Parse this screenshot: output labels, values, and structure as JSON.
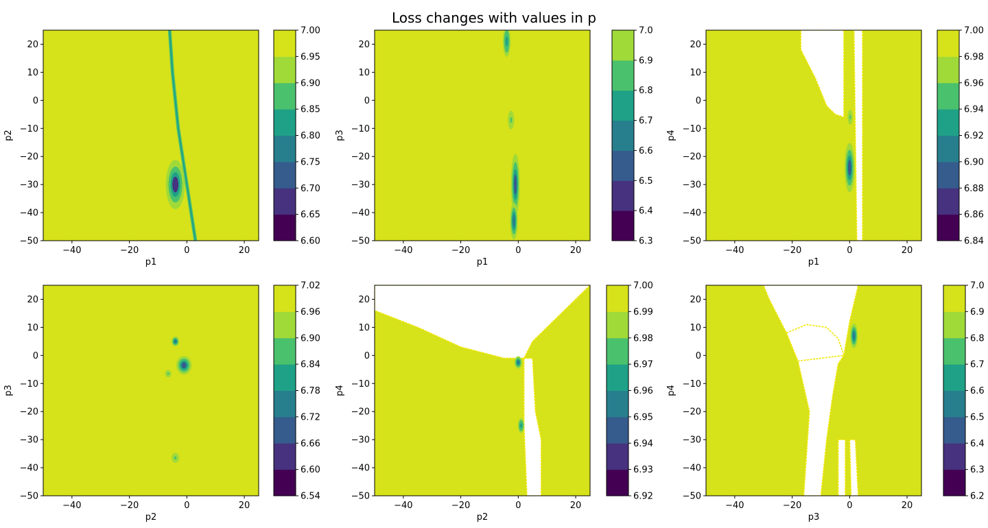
{
  "title": "Loss changes with values in p",
  "colors": {
    "viridis8": [
      "#440154",
      "#46327e",
      "#365c8d",
      "#277f8e",
      "#1fa187",
      "#4ac16d",
      "#a0da39",
      "#d6e21a"
    ],
    "plot_fill": "#d6e21a"
  },
  "chart_data": [
    {
      "type": "heatmap",
      "xlabel": "p1",
      "ylabel": "p2",
      "xlim": [
        -50,
        25
      ],
      "ylim": [
        -50,
        25
      ],
      "xticks": [
        -40,
        -20,
        0,
        20
      ],
      "yticks": [
        -50,
        -40,
        -30,
        -20,
        -10,
        0,
        10,
        20
      ],
      "colorbar": {
        "range": [
          6.6,
          7.0
        ],
        "ticks": [
          "6.60",
          "6.65",
          "6.70",
          "6.75",
          "6.80",
          "6.85",
          "6.90",
          "6.95",
          "7.00"
        ]
      },
      "features": [
        {
          "kind": "ridge",
          "points": [
            [
              -6,
              25
            ],
            [
              -5,
              10
            ],
            [
              -3,
              -10
            ],
            [
              0,
              -30
            ],
            [
              3,
              -50
            ]
          ],
          "level": 4
        },
        {
          "kind": "blob",
          "x": -4,
          "y": -30,
          "rx": 1.5,
          "ry": 4,
          "level": 1
        }
      ]
    },
    {
      "type": "heatmap",
      "xlabel": "p1",
      "ylabel": "p3",
      "xlim": [
        -50,
        25
      ],
      "ylim": [
        -50,
        25
      ],
      "xticks": [
        -40,
        -20,
        0,
        20
      ],
      "yticks": [
        -50,
        -40,
        -30,
        -20,
        -10,
        0,
        10,
        20
      ],
      "colorbar": {
        "range": [
          6.3,
          7.0
        ],
        "ticks": [
          "6.3",
          "6.4",
          "6.5",
          "6.6",
          "6.7",
          "6.8",
          "6.9",
          "7.0"
        ]
      },
      "features": [
        {
          "kind": "blob",
          "x": -4,
          "y": 21,
          "rx": 0.6,
          "ry": 2.5,
          "level": 4
        },
        {
          "kind": "blob",
          "x": -2.5,
          "y": -7,
          "rx": 0.5,
          "ry": 1.5,
          "level": 5
        },
        {
          "kind": "blob",
          "x": -1,
          "y": -30,
          "rx": 0.7,
          "ry": 5,
          "level": 2
        },
        {
          "kind": "blob",
          "x": -1.5,
          "y": -43,
          "rx": 0.6,
          "ry": 3,
          "level": 3
        }
      ]
    },
    {
      "type": "heatmap",
      "xlabel": "p1",
      "ylabel": "p4",
      "xlim": [
        -50,
        25
      ],
      "ylim": [
        -50,
        25
      ],
      "xticks": [
        -40,
        -20,
        0,
        20
      ],
      "yticks": [
        -50,
        -40,
        -30,
        -20,
        -10,
        0,
        10,
        20
      ],
      "colorbar": {
        "range": [
          6.84,
          7.0
        ],
        "ticks": [
          "6.84",
          "6.86",
          "6.88",
          "6.90",
          "6.92",
          "6.94",
          "6.96",
          "6.98",
          "7.00"
        ]
      },
      "features": [
        {
          "kind": "void",
          "points": [
            [
              -17,
              25
            ],
            [
              -2,
              25
            ],
            [
              -2,
              -6
            ],
            [
              -5,
              -5
            ],
            [
              -8,
              -2
            ],
            [
              -12,
              8
            ],
            [
              -17,
              18
            ]
          ]
        },
        {
          "kind": "void",
          "points": [
            [
              1.5,
              25
            ],
            [
              4.5,
              25
            ],
            [
              4.5,
              -50
            ],
            [
              2.5,
              -50
            ]
          ]
        },
        {
          "kind": "blob",
          "x": 0,
          "y": -24,
          "rx": 0.8,
          "ry": 4,
          "level": 2
        },
        {
          "kind": "blob",
          "x": 0.2,
          "y": -6,
          "rx": 0.4,
          "ry": 1.2,
          "level": 5
        }
      ]
    },
    {
      "type": "heatmap",
      "xlabel": "p2",
      "ylabel": "p3",
      "xlim": [
        -50,
        25
      ],
      "ylim": [
        -50,
        25
      ],
      "xticks": [
        -40,
        -20,
        0,
        20
      ],
      "yticks": [
        -50,
        -40,
        -30,
        -20,
        -10,
        0,
        10,
        20
      ],
      "colorbar": {
        "range": [
          6.54,
          7.02
        ],
        "ticks": [
          "6.54",
          "6.60",
          "6.66",
          "6.72",
          "6.78",
          "6.84",
          "6.90",
          "6.96",
          "7.02"
        ]
      },
      "features": [
        {
          "kind": "blob",
          "x": -4,
          "y": 5,
          "rx": 0.6,
          "ry": 0.8,
          "level": 3
        },
        {
          "kind": "blob",
          "x": -1,
          "y": -3.5,
          "rx": 1.2,
          "ry": 1.5,
          "level": 2
        },
        {
          "kind": "blob",
          "x": -6.5,
          "y": -6.5,
          "rx": 0.5,
          "ry": 0.6,
          "level": 5
        },
        {
          "kind": "blob",
          "x": -4,
          "y": -36.5,
          "rx": 0.6,
          "ry": 0.8,
          "level": 5
        }
      ]
    },
    {
      "type": "heatmap",
      "xlabel": "p2",
      "ylabel": "p4",
      "xlim": [
        -50,
        25
      ],
      "ylim": [
        -50,
        25
      ],
      "xticks": [
        -40,
        -20,
        0,
        20
      ],
      "yticks": [
        -50,
        -40,
        -30,
        -20,
        -10,
        0,
        10,
        20
      ],
      "colorbar": {
        "range": [
          6.92,
          7.0
        ],
        "ticks": [
          "6.92",
          "6.93",
          "6.94",
          "6.95",
          "6.96",
          "6.97",
          "6.98",
          "6.99",
          "7.00"
        ]
      },
      "features": [
        {
          "kind": "void",
          "points": [
            [
              -50,
              25
            ],
            [
              25,
              25
            ],
            [
              23,
              23
            ],
            [
              10,
              10
            ],
            [
              5,
              5
            ],
            [
              2,
              -1
            ],
            [
              -5,
              -1
            ],
            [
              -20,
              3
            ],
            [
              -35,
              10
            ],
            [
              -50,
              16
            ]
          ]
        },
        {
          "kind": "void",
          "points": [
            [
              2,
              -1
            ],
            [
              5,
              -1
            ],
            [
              6,
              -20
            ],
            [
              8,
              -30
            ],
            [
              8,
              -50
            ],
            [
              3,
              -50
            ],
            [
              2,
              -25
            ]
          ]
        },
        {
          "kind": "blob",
          "x": 0,
          "y": -2.5,
          "rx": 0.6,
          "ry": 1,
          "level": 3
        },
        {
          "kind": "blob",
          "x": 1,
          "y": -25,
          "rx": 0.5,
          "ry": 1.2,
          "level": 4
        }
      ]
    },
    {
      "type": "heatmap",
      "xlabel": "p3",
      "ylabel": "p4",
      "xlim": [
        -50,
        25
      ],
      "ylim": [
        -50,
        25
      ],
      "xticks": [
        -40,
        -20,
        0,
        20
      ],
      "yticks": [
        -50,
        -40,
        -30,
        -20,
        -10,
        0,
        10,
        20
      ],
      "colorbar": {
        "range": [
          6.2,
          7.0
        ],
        "ticks": [
          "6.2",
          "6.3",
          "6.4",
          "6.5",
          "6.6",
          "6.7",
          "6.8",
          "6.9",
          "7.0"
        ]
      },
      "features": [
        {
          "kind": "void",
          "points": [
            [
              -30,
              25
            ],
            [
              3,
              25
            ],
            [
              0,
              12
            ],
            [
              -2,
              0
            ],
            [
              -4,
              -3
            ],
            [
              -6,
              -15
            ],
            [
              -8,
              -30
            ],
            [
              -10,
              -50
            ],
            [
              -16,
              -50
            ],
            [
              -14,
              -20
            ],
            [
              -18,
              -2
            ],
            [
              -22,
              8
            ],
            [
              -28,
              20
            ]
          ]
        },
        {
          "kind": "void",
          "points": [
            [
              -22,
              8
            ],
            [
              -15,
              11
            ],
            [
              -8,
              10
            ],
            [
              -4,
              6
            ],
            [
              -2,
              0
            ],
            [
              -18,
              -2
            ]
          ]
        },
        {
          "kind": "void",
          "points": [
            [
              -4,
              -30
            ],
            [
              -1.5,
              -30
            ],
            [
              -1.5,
              -50
            ],
            [
              -4,
              -50
            ]
          ]
        },
        {
          "kind": "void",
          "points": [
            [
              0,
              -30
            ],
            [
              2,
              -30
            ],
            [
              3,
              -50
            ],
            [
              0.5,
              -50
            ]
          ]
        },
        {
          "kind": "blob",
          "x": 1.5,
          "y": 7,
          "rx": 0.6,
          "ry": 2,
          "level": 3
        }
      ]
    }
  ]
}
